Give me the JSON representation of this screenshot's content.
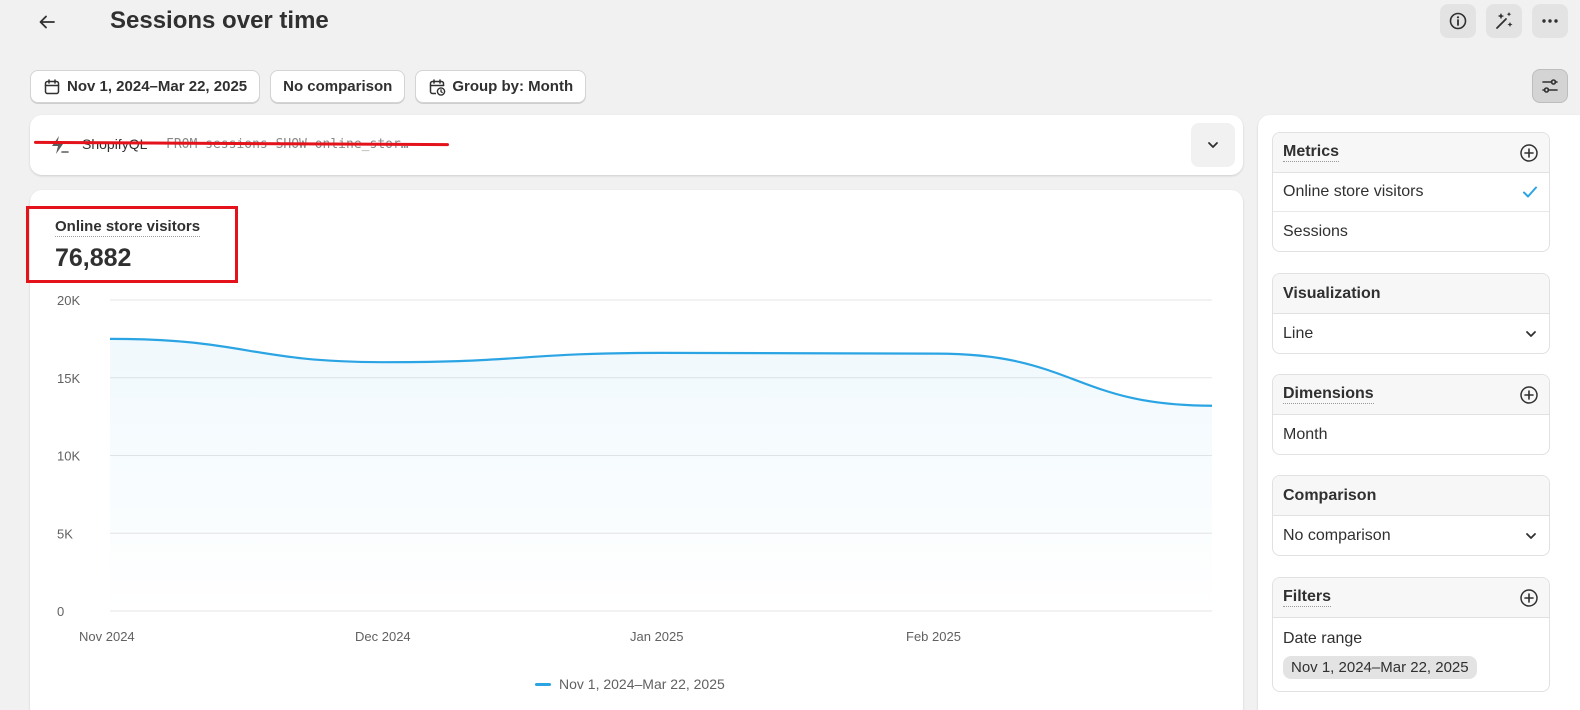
{
  "header": {
    "title": "Sessions over time"
  },
  "filters": {
    "date_range": "Nov 1, 2024–Mar 22, 2025",
    "comparison": "No comparison",
    "group_by": "Group by: Month"
  },
  "query": {
    "label": "ShopifyQL",
    "code": "FROM sessions SHOW online_stor…"
  },
  "metric": {
    "label": "Online store visitors",
    "value": "76,882"
  },
  "chart_data": {
    "type": "line",
    "x": [
      "2024-11-01",
      "2024-12-01",
      "2025-01-01",
      "2025-02-01",
      "2025-03-01"
    ],
    "x_tick_labels": [
      "Nov 2024",
      "Dec 2024",
      "Jan 2025",
      "Feb 2025"
    ],
    "series": [
      {
        "name": "Nov 1, 2024–Mar 22, 2025",
        "values": [
          17500,
          16000,
          16600,
          16550,
          13200
        ]
      }
    ],
    "y_ticks": [
      "0",
      "5K",
      "10K",
      "15K",
      "20K"
    ],
    "ylim": [
      0,
      20000
    ],
    "grid": true,
    "legend": "bottom-center",
    "colors": {
      "line": "#2ba4e4"
    }
  },
  "sidebar": {
    "metrics": {
      "title": "Metrics",
      "items": [
        {
          "label": "Online store visitors",
          "selected": true
        },
        {
          "label": "Sessions",
          "selected": false
        }
      ]
    },
    "visualization": {
      "title": "Visualization",
      "value": "Line"
    },
    "dimensions": {
      "title": "Dimensions",
      "items": [
        {
          "label": "Month"
        }
      ]
    },
    "comparison": {
      "title": "Comparison",
      "value": "No comparison"
    },
    "filters": {
      "title": "Filters",
      "date_label": "Date range",
      "date_value": "Nov 1, 2024–Mar 22, 2025"
    }
  },
  "icons": {
    "back": "arrow-left-icon",
    "info": "info-icon",
    "magic": "sparkle-icon",
    "more": "more-horizontal-icon",
    "settings": "sliders-icon",
    "calendar": "calendar-icon",
    "calendar_clock": "calendar-clock-icon",
    "query": "lightning-icon",
    "expand": "chevron-down-icon",
    "add": "plus-circle-icon",
    "check": "checkmark-icon"
  }
}
